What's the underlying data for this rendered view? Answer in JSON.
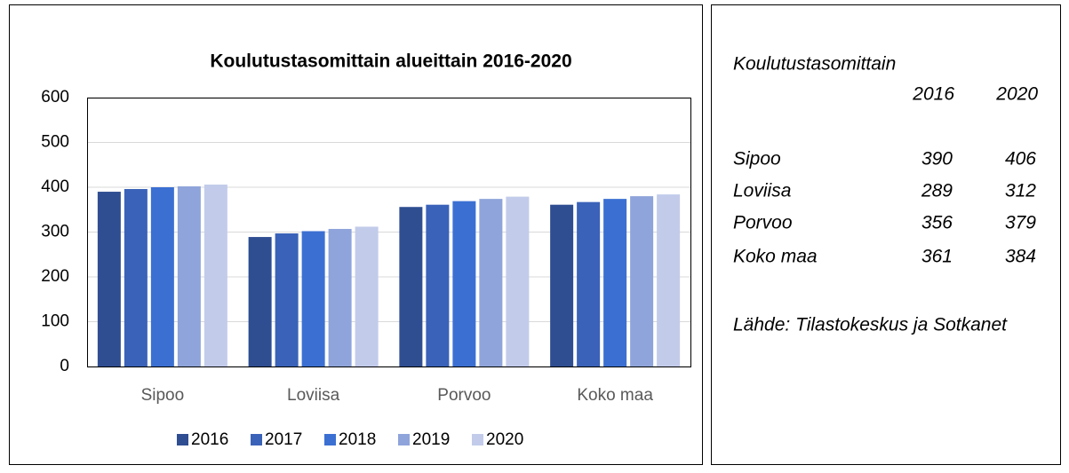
{
  "chart_data": {
    "type": "bar",
    "title": "Koulutustasomittain alueittain 2016-2020",
    "categories": [
      "Sipoo",
      "Loviisa",
      "Porvoo",
      "Koko maa"
    ],
    "series": [
      {
        "name": "2016",
        "color": "#2f4e92",
        "values": [
          390,
          289,
          356,
          361
        ]
      },
      {
        "name": "2017",
        "color": "#3a62b8",
        "values": [
          396,
          297,
          361,
          367
        ]
      },
      {
        "name": "2018",
        "color": "#3b70d2",
        "values": [
          400,
          302,
          369,
          374
        ]
      },
      {
        "name": "2019",
        "color": "#8ea4da",
        "values": [
          402,
          307,
          374,
          380
        ]
      },
      {
        "name": "2020",
        "color": "#c2cbea",
        "values": [
          406,
          312,
          379,
          384
        ]
      }
    ],
    "ylim": [
      0,
      600
    ],
    "yticks": [
      0,
      100,
      200,
      300,
      400,
      500,
      600
    ],
    "grid": true,
    "legend": "bottom"
  },
  "side_panel": {
    "title": "Koulutustasomittain",
    "columns": [
      "2016",
      "2020"
    ],
    "rows": [
      {
        "label": "Sipoo",
        "values": [
          390,
          406
        ]
      },
      {
        "label": "Loviisa",
        "values": [
          289,
          312
        ]
      },
      {
        "label": "Porvoo",
        "values": [
          356,
          379
        ]
      },
      {
        "label": "Koko maa",
        "values": [
          361,
          384
        ]
      }
    ],
    "source": "Lähde: Tilastokeskus ja Sotkanet"
  }
}
